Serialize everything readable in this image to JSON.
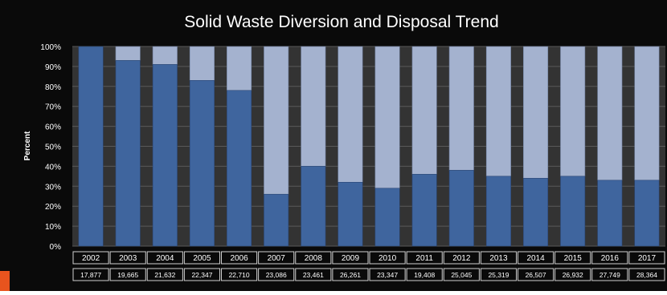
{
  "colors": {
    "background": "#0a0a0a",
    "plot_background": "#333333",
    "bar_bottom": "#3f659e",
    "bar_top": "#a4b2cf",
    "grid": "#5a5a5a",
    "text": "#ffffff",
    "accent_tab": "#e8541e"
  },
  "chart_data": {
    "type": "bar",
    "stacked": true,
    "percent_stacked": true,
    "title": "Solid Waste Diversion and Disposal Trend",
    "ylabel": "Percent",
    "xlabel": "",
    "ylim": [
      0,
      100
    ],
    "y_ticks": [
      "0%",
      "10%",
      "20%",
      "30%",
      "40%",
      "50%",
      "60%",
      "70%",
      "80%",
      "90%",
      "100%"
    ],
    "grid": true,
    "legend": "none",
    "categories": [
      "2002",
      "2003",
      "2004",
      "2005",
      "2006",
      "2007",
      "2008",
      "2009",
      "2010",
      "2011",
      "2012",
      "2013",
      "2014",
      "2015",
      "2016",
      "2017"
    ],
    "series": [
      {
        "values": [
          100,
          93,
          91,
          83,
          78,
          26,
          40,
          32,
          29,
          36,
          38,
          35,
          34,
          35,
          33,
          33
        ]
      },
      {
        "values": [
          0,
          7,
          9,
          17,
          22,
          74,
          60,
          68,
          71,
          64,
          62,
          65,
          66,
          65,
          67,
          67
        ]
      }
    ],
    "table_row": [
      "17,877",
      "19,665",
      "21,632",
      "22,347",
      "22,710",
      "23,086",
      "23,461",
      "26,261",
      "23,347",
      "19,408",
      "25,045",
      "25,319",
      "26,507",
      "26,932",
      "27,749",
      "28,364"
    ]
  }
}
